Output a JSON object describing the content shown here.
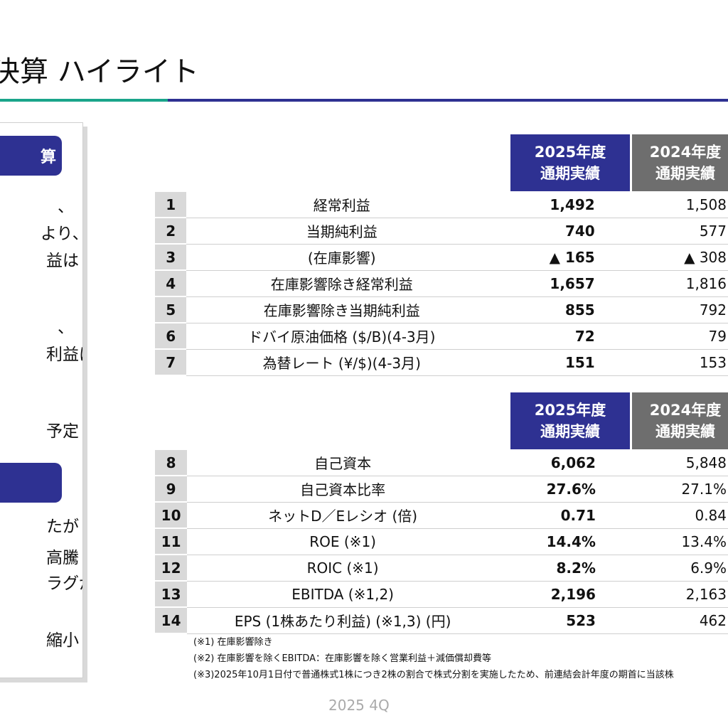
{
  "title": "決算 ハイライト",
  "left_panel": {
    "section1": {
      "heading": "算",
      "lines": [
        "、",
        "より、",
        "益は",
        "、",
        "利益は",
        "予定"
      ]
    },
    "section2": {
      "lines": [
        "たが",
        "高騰",
        "ラグが",
        "縮小"
      ]
    }
  },
  "table_header": {
    "current_line1": "2025年度",
    "current_line2": "通期実績",
    "previous_line1": "2024年度",
    "previous_line2": "通期実績"
  },
  "table1": [
    {
      "no": "1",
      "label": "経常利益",
      "current": "1,492",
      "previous": "1,508"
    },
    {
      "no": "2",
      "label": "当期純利益",
      "current": "740",
      "previous": "577"
    },
    {
      "no": "3",
      "label": "(在庫影響)",
      "current": "▲ 165",
      "previous": "▲ 308"
    },
    {
      "no": "4",
      "label": "在庫影響除き経常利益",
      "current": "1,657",
      "previous": "1,816"
    },
    {
      "no": "5",
      "label": "在庫影響除き当期純利益",
      "current": "855",
      "previous": "792"
    },
    {
      "no": "6",
      "label": "ドバイ原油価格 ($/B)(4-3月)",
      "current": "72",
      "previous": "79"
    },
    {
      "no": "7",
      "label": "為替レート (¥/$)(4-3月)",
      "current": "151",
      "previous": "153"
    }
  ],
  "table2": [
    {
      "no": "8",
      "label": "自己資本",
      "current": "6,062",
      "previous": "5,848"
    },
    {
      "no": "9",
      "label": "自己資本比率",
      "current": "27.6%",
      "previous": "27.1%"
    },
    {
      "no": "10",
      "label": "ネットD／Eレシオ (倍)",
      "current": "0.71",
      "previous": "0.84"
    },
    {
      "no": "11",
      "label": "ROE (※1)",
      "current": "14.4%",
      "previous": "13.4%"
    },
    {
      "no": "12",
      "label": "ROIC (※1)",
      "current": "8.2%",
      "previous": "6.9%"
    },
    {
      "no": "13",
      "label": "EBITDA (※1,2)",
      "current": "2,196",
      "previous": "2,163"
    },
    {
      "no": "14",
      "label": "EPS (1株あたり利益) (※1,3) (円)",
      "current": "523",
      "previous": "462"
    }
  ],
  "notes": [
    "(※1) 在庫影響除き",
    "(※2) 在庫影響を除くEBITDA：在庫影響を除く営業利益＋減価償却費等",
    "(※3)2025年10月1日付で普通株式1株につき2株の割合で株式分割を実施したため、前連結会計年度の期首に当該株"
  ],
  "footer": "2025 4Q",
  "colors": {
    "navy": "#2e3192",
    "green": "#1aa58a",
    "gray_header": "#6e6e6e",
    "number_cell": "#d9d9d9"
  }
}
